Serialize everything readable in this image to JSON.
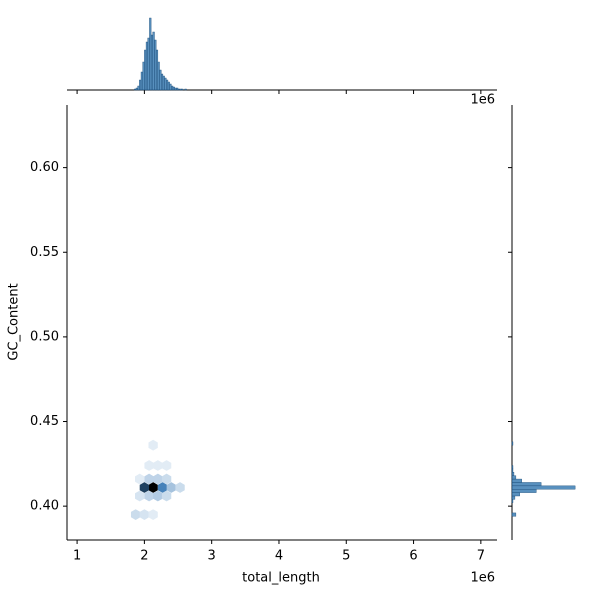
{
  "chart_data": {
    "type": "hexbin",
    "x_label": "total_length",
    "y_label": "GC_Content",
    "x_offset_label": "1e6",
    "xlim": [
      0.85,
      7.24
    ],
    "ylim": [
      0.38,
      0.637
    ],
    "xticks": [
      1,
      2,
      3,
      4,
      5,
      6,
      7
    ],
    "yticks": [
      {
        "value": 0.4,
        "label": "0.40"
      },
      {
        "value": 0.45,
        "label": "0.45"
      },
      {
        "value": 0.5,
        "label": "0.50"
      },
      {
        "value": 0.55,
        "label": "0.55"
      },
      {
        "value": 0.6,
        "label": "0.60"
      }
    ],
    "colors": [
      "#eef4fa",
      "#3a7ab5",
      "#000000"
    ],
    "hexes": {
      "x": [
        2.13,
        2.0,
        2.27,
        2.4,
        2.53,
        1.93,
        2.07,
        2.2,
        2.33,
        1.93,
        2.07,
        2.2,
        2.33,
        2.07,
        2.2,
        2.33,
        2.13,
        1.87,
        2.0,
        2.13
      ],
      "y": [
        0.411,
        0.411,
        0.411,
        0.411,
        0.411,
        0.406,
        0.406,
        0.406,
        0.406,
        0.416,
        0.416,
        0.416,
        0.416,
        0.424,
        0.424,
        0.424,
        0.436,
        0.395,
        0.395,
        0.395
      ],
      "counts": [
        30,
        22,
        14,
        6,
        3,
        2,
        4,
        5,
        3,
        1,
        4,
        4,
        3,
        1,
        1,
        1,
        1,
        3,
        2,
        1
      ]
    },
    "hist_color": "#3b7cb3",
    "top_hist": {
      "bins": [
        1.85,
        1.875,
        1.9,
        1.925,
        1.95,
        1.975,
        2.0,
        2.025,
        2.05,
        2.075,
        2.1,
        2.125,
        2.15,
        2.175,
        2.2,
        2.225,
        2.25,
        2.275,
        2.3,
        2.325,
        2.35,
        2.375,
        2.4,
        2.425,
        2.45,
        2.475,
        2.5,
        2.525,
        2.55,
        2.575,
        2.6,
        2.625,
        2.65
      ],
      "counts": [
        1,
        2,
        4,
        10,
        18,
        28,
        40,
        48,
        52,
        72,
        55,
        58,
        50,
        40,
        28,
        20,
        16,
        14,
        12,
        10,
        8,
        6,
        4,
        3,
        2,
        2,
        1,
        1,
        1,
        0,
        1,
        0
      ],
      "ylim": [
        0,
        75
      ]
    },
    "right_hist": {
      "bins": [
        0.392,
        0.394,
        0.396,
        0.398,
        0.4,
        0.402,
        0.404,
        0.406,
        0.408,
        0.41,
        0.412,
        0.414,
        0.416,
        0.418,
        0.42,
        0.422,
        0.424,
        0.426,
        0.428,
        0.43,
        0.432,
        0.434,
        0.436,
        0.438
      ],
      "counts": [
        0,
        4,
        0,
        0,
        0,
        1,
        3,
        8,
        25,
        65,
        30,
        10,
        4,
        2,
        1,
        1,
        0,
        0,
        0,
        0,
        0,
        0,
        1
      ],
      "xlim": [
        0,
        70
      ]
    }
  }
}
